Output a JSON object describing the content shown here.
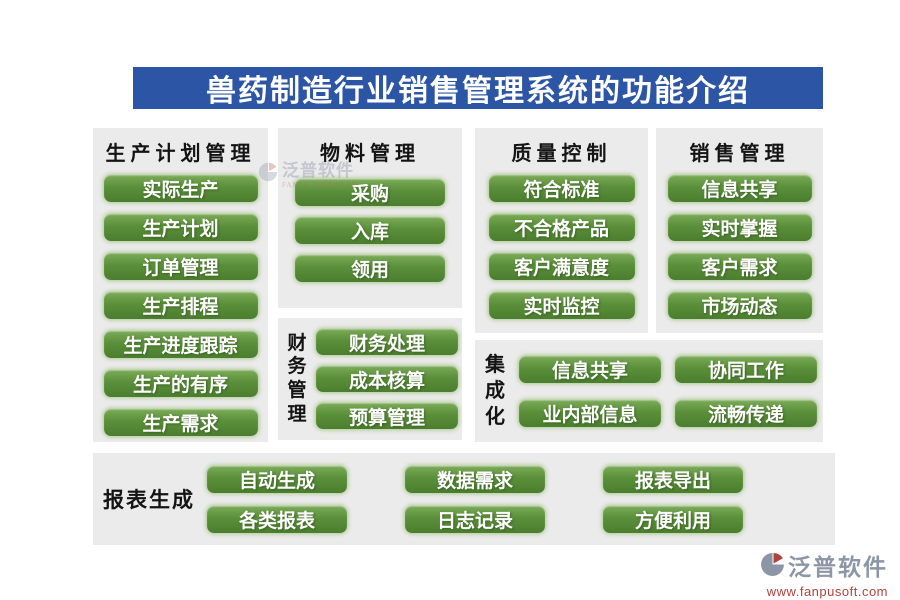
{
  "title": "兽药制造行业销售管理系统的功能介绍",
  "panels": {
    "production": {
      "header": "生产计划管理",
      "items": [
        "实际生产",
        "生产计划",
        "订单管理",
        "生产排程",
        "生产进度跟踪",
        "生产的有序",
        "生产需求"
      ]
    },
    "material": {
      "header": "物料管理",
      "items": [
        "采购",
        "入库",
        "领用"
      ]
    },
    "finance": {
      "header": "财务管理",
      "items": [
        "财务处理",
        "成本核算",
        "预算管理"
      ]
    },
    "quality": {
      "header": "质量控制",
      "items": [
        "符合标准",
        "不合格产品",
        "客户满意度",
        "实时监控"
      ]
    },
    "sales": {
      "header": "销售管理",
      "items": [
        "信息共享",
        "实时掌握",
        "客户需求",
        "市场动态"
      ]
    },
    "integration": {
      "header": "集成化",
      "items": [
        "信息共享",
        "协同工作",
        "业内部信息",
        "流畅传递"
      ]
    },
    "report": {
      "header": "报表生成",
      "items": [
        "自动生成",
        "数据需求",
        "报表导出",
        "各类报表",
        "日志记录",
        "方便利用"
      ]
    }
  },
  "branding": {
    "logo_text": "泛普软件",
    "website": "www.fanpusoft.com",
    "watermark_text": "泛普软件",
    "watermark_subtext": "FANPU SOFTWARE"
  },
  "colors": {
    "title_bg": "#2d55a5",
    "panel_bg": "#ebebeb",
    "button_green": "#5a8f3a",
    "brand_gray": "#8d96a6",
    "brand_red": "#b2433b"
  }
}
